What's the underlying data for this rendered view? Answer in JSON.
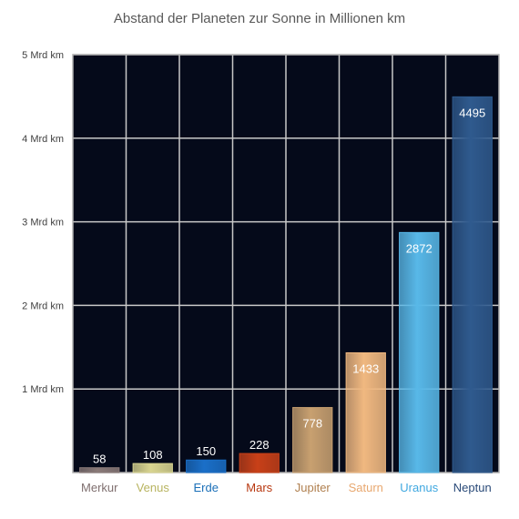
{
  "chart_data": {
    "type": "bar",
    "title": "Abstand der Planeten zur Sonne in Millionen km",
    "xlabel": "",
    "ylabel": "",
    "categories": [
      "Merkur",
      "Venus",
      "Erde",
      "Mars",
      "Jupiter",
      "Saturn",
      "Uranus",
      "Neptun"
    ],
    "values": [
      58,
      108,
      150,
      228,
      778,
      1433,
      2872,
      4495
    ],
    "ylim": [
      0,
      5000
    ],
    "yticks": [
      {
        "value": 1000,
        "label": "1 Mrd km"
      },
      {
        "value": 2000,
        "label": "2 Mrd km"
      },
      {
        "value": 3000,
        "label": "3 Mrd km"
      },
      {
        "value": 4000,
        "label": "4 Mrd km"
      },
      {
        "value": 5000,
        "label": "5 Mrd km"
      }
    ],
    "grid": true,
    "legend": "none",
    "colors": {
      "plot_background": "#050a1a",
      "grid": "#c8c8c8",
      "bars": [
        "#8a7a78",
        "#d8d490",
        "#1a6fc8",
        "#c84018",
        "#c8a070",
        "#f0b880",
        "#58b8e8",
        "#2f5a8e"
      ],
      "bar_labels": [
        "#7f6f6f",
        "#b8b460",
        "#1a6fb8",
        "#b83810",
        "#b08050",
        "#e8a870",
        "#40a8e0",
        "#2a4a78"
      ]
    }
  }
}
